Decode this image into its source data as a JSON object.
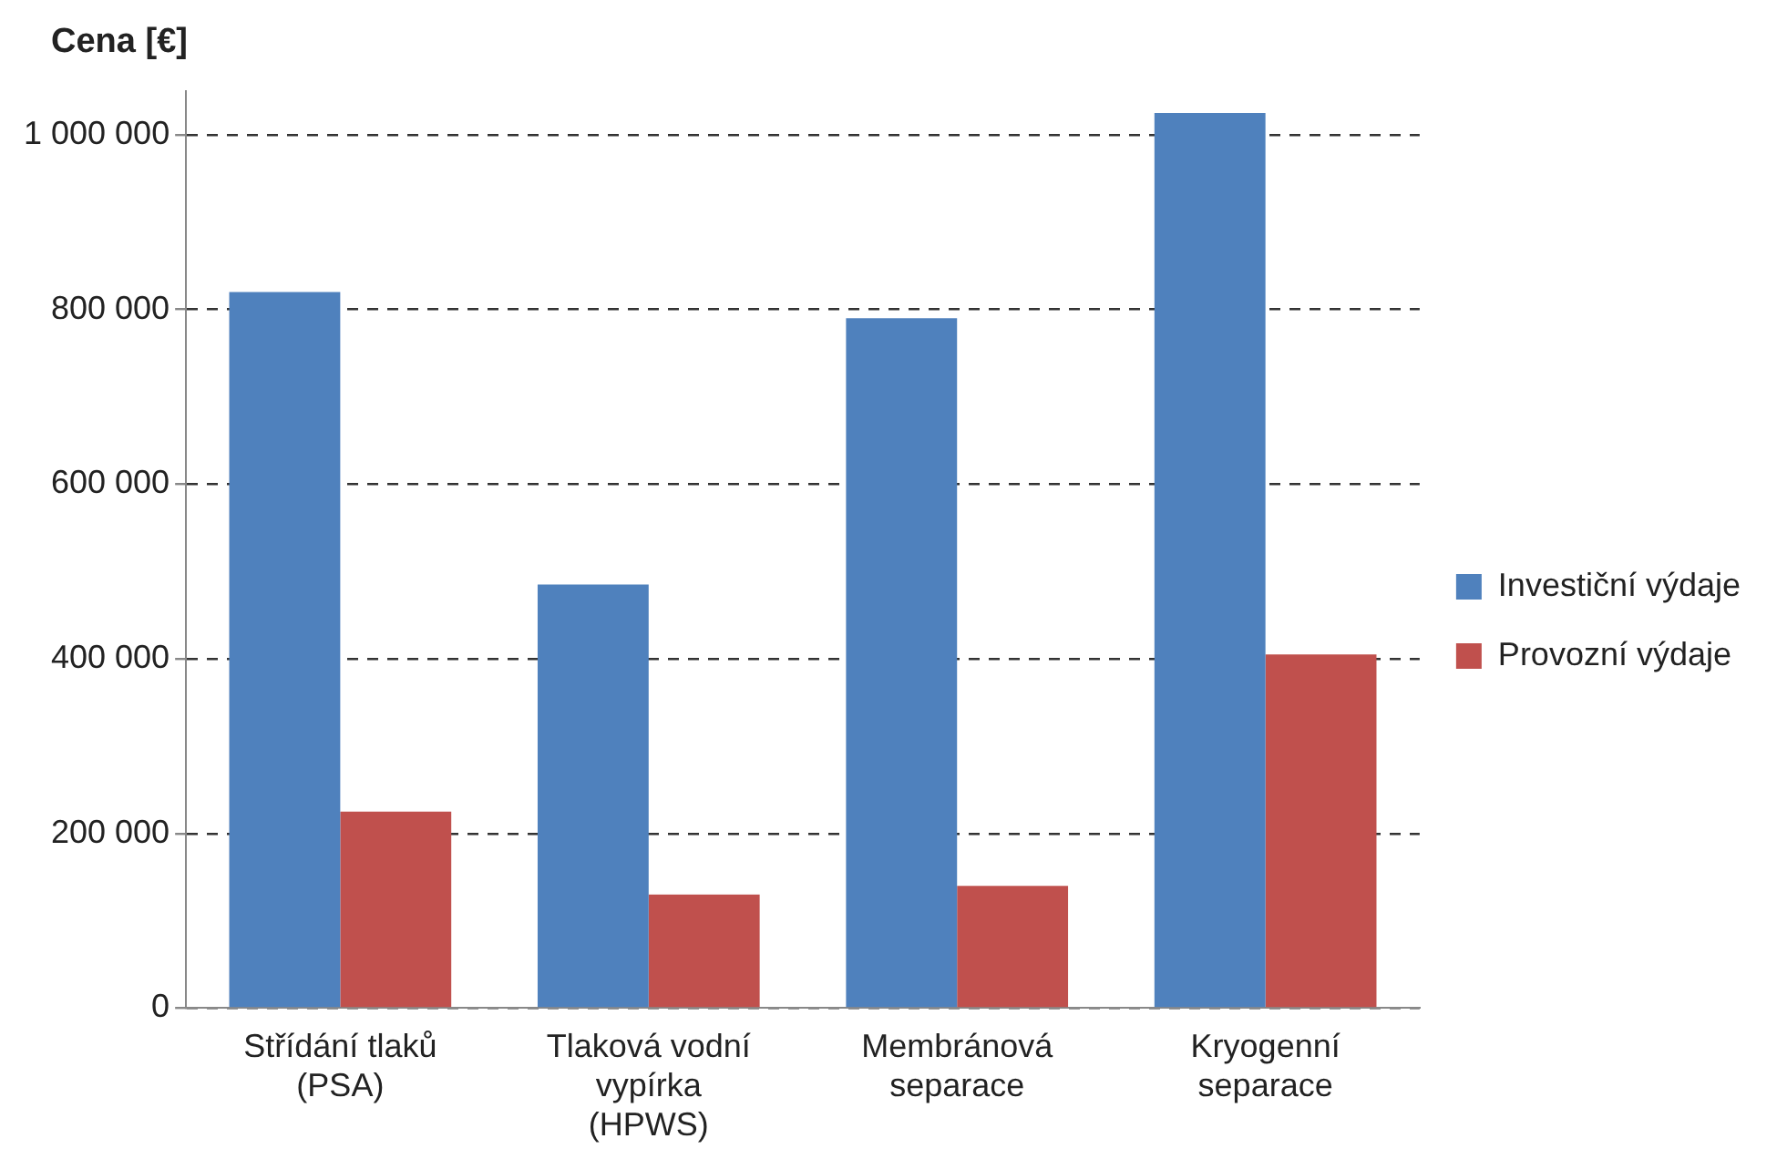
{
  "chart_data": {
    "type": "bar",
    "ylabel": "Cena [€]",
    "categories": [
      "Střídání tlaků\n(PSA)",
      "Tlaková vodní\nvypírka\n(HPWS)",
      "Membránová\nseparace",
      "Kryogenní\nseparace"
    ],
    "series": [
      {
        "name": "Investiční výdaje",
        "color": "#4f81bd",
        "values": [
          820000,
          485000,
          790000,
          1025000
        ]
      },
      {
        "name": "Provozní výdaje",
        "color": "#c0504d",
        "values": [
          225000,
          130000,
          140000,
          405000
        ]
      }
    ],
    "ylim": [
      0,
      1050000
    ],
    "yticks": [
      0,
      {
        "value": 200000,
        "label": "200 000"
      },
      {
        "value": 400000,
        "label": "400 000"
      },
      {
        "value": 600000,
        "label": "600 000"
      },
      {
        "value": 800000,
        "label": "800 000"
      },
      {
        "value": 1000000,
        "label": "1 000 000"
      }
    ],
    "grid": "y",
    "legend": "right"
  }
}
